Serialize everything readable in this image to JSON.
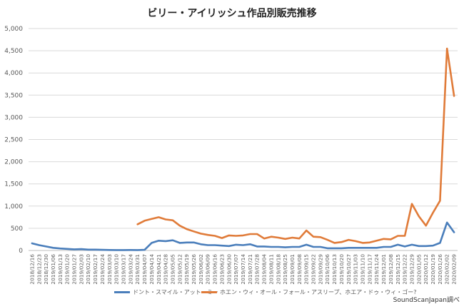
{
  "chart_data": {
    "type": "line",
    "title": "ビリー・アイリッシュ作品別販売推移",
    "xlabel": "",
    "ylabel": "",
    "ylim": [
      0,
      5000
    ],
    "yticks": [
      "0",
      "500",
      "1,000",
      "1,500",
      "2,000",
      "2,500",
      "3,000",
      "3,500",
      "4,000",
      "4,500",
      "5,000"
    ],
    "grid": true,
    "legend_position": "bottom",
    "x": [
      "2018/12/16",
      "2018/12/23",
      "2018/12/30",
      "2019/01/06",
      "2019/01/13",
      "2019/01/20",
      "2019/01/27",
      "2019/02/03",
      "2019/02/10",
      "2019/02/17",
      "2019/02/24",
      "2019/03/03",
      "2019/03/10",
      "2019/03/17",
      "2019/03/24",
      "2019/03/31",
      "2019/04/07",
      "2019/04/14",
      "2019/04/21",
      "2019/04/28",
      "2019/05/05",
      "2019/05/12",
      "2019/05/19",
      "2019/05/26",
      "2019/06/02",
      "2019/06/09",
      "2019/06/16",
      "2019/06/23",
      "2019/06/30",
      "2019/07/07",
      "2019/07/14",
      "2019/07/21",
      "2019/07/28",
      "2019/08/04",
      "2019/08/11",
      "2019/08/18",
      "2019/08/25",
      "2019/09/01",
      "2019/09/08",
      "2019/09/15",
      "2019/09/22",
      "2019/09/29",
      "2019/10/06",
      "2019/10/13",
      "2019/10/20",
      "2019/10/27",
      "2019/11/03",
      "2019/11/10",
      "2019/11/17",
      "2019/11/24",
      "2019/12/01",
      "2019/12/08",
      "2019/12/15",
      "2019/12/22",
      "2019/12/29",
      "2020/01/05",
      "2020/01/12",
      "2020/01/19",
      "2020/01/26",
      "2020/02/02",
      "2020/02/09"
    ],
    "series": [
      {
        "name": "ドント・スマイル・アット・ミー",
        "color": "#4a7ebb",
        "values": [
          160,
          120,
          90,
          60,
          45,
          35,
          25,
          30,
          20,
          20,
          15,
          12,
          10,
          10,
          12,
          10,
          15,
          170,
          220,
          210,
          230,
          170,
          180,
          180,
          140,
          120,
          120,
          110,
          100,
          130,
          120,
          140,
          90,
          90,
          80,
          80,
          70,
          80,
          80,
          130,
          80,
          80,
          50,
          50,
          50,
          60,
          60,
          60,
          60,
          60,
          80,
          80,
          130,
          90,
          130,
          100,
          100,
          110,
          170,
          630,
          410
        ]
      },
      {
        "name": "ホエン・ウィ・オール・フォール・アスリープ、ホエア・ドゥ・ウィ・ゴー?",
        "color": "#e07b39",
        "values": [
          null,
          null,
          null,
          null,
          null,
          null,
          null,
          null,
          null,
          null,
          null,
          null,
          null,
          null,
          null,
          590,
          670,
          710,
          750,
          700,
          680,
          560,
          480,
          430,
          380,
          350,
          330,
          280,
          340,
          330,
          340,
          370,
          370,
          270,
          310,
          290,
          260,
          290,
          270,
          450,
          310,
          300,
          240,
          170,
          190,
          240,
          210,
          170,
          180,
          220,
          260,
          250,
          330,
          330,
          1050,
          770,
          560,
          850,
          1120,
          4550,
          3480
        ]
      }
    ]
  },
  "legend": {
    "series1": "ドント・スマイル・アット・ミー",
    "series2": "ホエン・ウィ・オール・フォール・アスリープ、ホエア・ドゥ・ウィ・ゴー?"
  },
  "source_note": "SoundScanJapan調べ",
  "colors": {
    "series1": "#4a7ebb",
    "series2": "#e07b39",
    "grid": "#d9d9d9"
  }
}
